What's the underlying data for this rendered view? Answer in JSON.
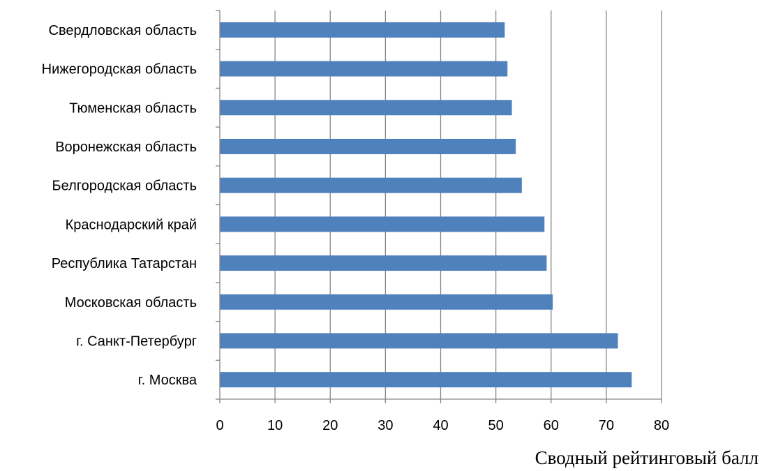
{
  "chart_data": {
    "type": "bar",
    "orientation": "horizontal",
    "categories": [
      "г. Москва",
      "г. Санкт-Петербург",
      "Московская область",
      "Республика Татарстан",
      "Краснодарский край",
      "Белгородская область",
      "Воронежская область",
      "Тюменская область",
      "Нижегородская область",
      "Свердловская область"
    ],
    "values": [
      74.6,
      72.1,
      60.3,
      59.2,
      58.8,
      54.7,
      53.6,
      52.9,
      52.1,
      51.6
    ],
    "xlabel": "Сводный рейтинговый балл",
    "ylabel": "",
    "xlim": [
      0,
      80
    ],
    "xticks": [
      "0",
      "10",
      "20",
      "30",
      "40",
      "50",
      "60",
      "70",
      "80"
    ],
    "grid": "vertical",
    "legend": "none",
    "colors": {
      "bar": "#4f81bd",
      "grid": "#868686",
      "axis": "#868686"
    }
  }
}
